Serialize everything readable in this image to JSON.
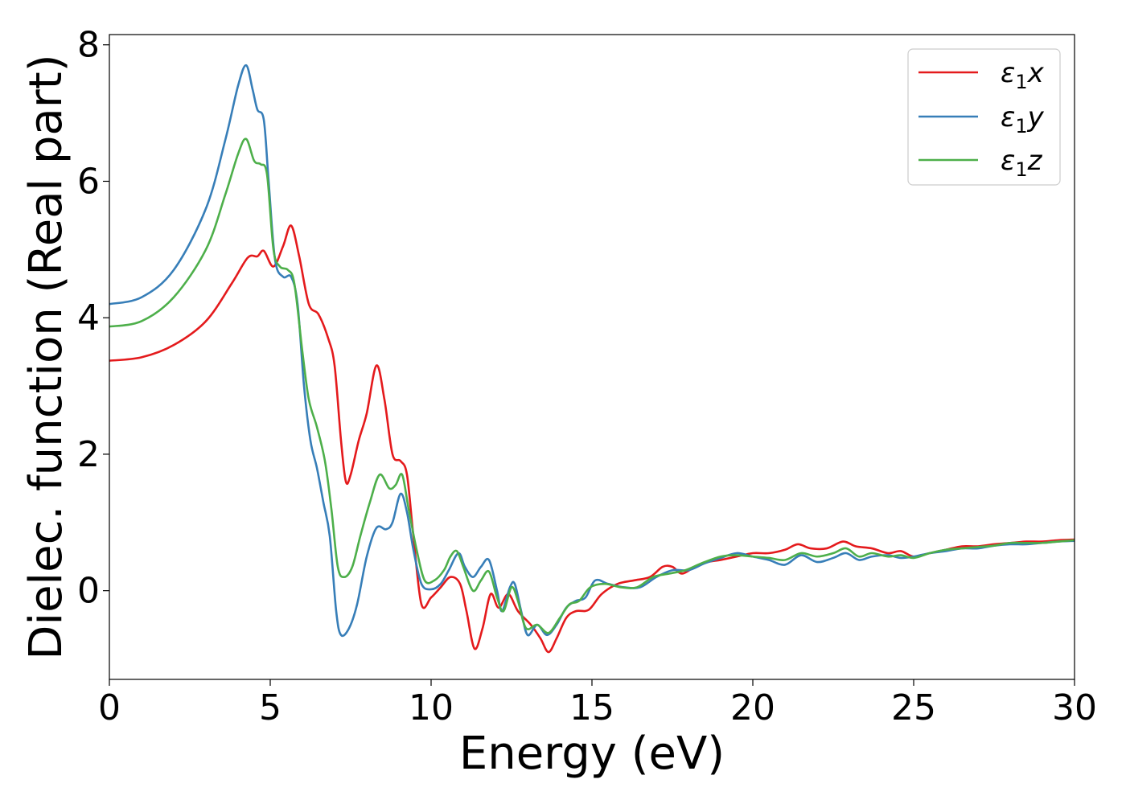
{
  "chart_data": {
    "type": "line",
    "xlabel": "Energy (eV)",
    "ylabel": "Dielec. function (Real part)",
    "xlim": [
      0,
      30
    ],
    "ylim": [
      -1.3,
      8.15
    ],
    "xticks": [
      0,
      5,
      10,
      15,
      20,
      25,
      30
    ],
    "yticks": [
      0,
      2,
      4,
      6,
      8
    ],
    "grid": false,
    "legend_position": "top-right",
    "series": [
      {
        "name": "ε₁x",
        "label_main": "ε",
        "label_sub": "1",
        "label_tail": "x",
        "color": "#e41a1c",
        "points": [
          [
            0,
            3.37
          ],
          [
            1,
            3.42
          ],
          [
            2,
            3.6
          ],
          [
            3,
            3.95
          ],
          [
            3.8,
            4.5
          ],
          [
            4.3,
            4.88
          ],
          [
            4.6,
            4.9
          ],
          [
            4.8,
            4.98
          ],
          [
            5.1,
            4.75
          ],
          [
            5.4,
            5.05
          ],
          [
            5.65,
            5.35
          ],
          [
            5.9,
            4.9
          ],
          [
            6.2,
            4.2
          ],
          [
            6.5,
            4.05
          ],
          [
            6.8,
            3.7
          ],
          [
            7.0,
            3.3
          ],
          [
            7.2,
            2.2
          ],
          [
            7.35,
            1.6
          ],
          [
            7.5,
            1.7
          ],
          [
            7.75,
            2.2
          ],
          [
            8.0,
            2.6
          ],
          [
            8.3,
            3.3
          ],
          [
            8.55,
            2.8
          ],
          [
            8.8,
            2.0
          ],
          [
            9.05,
            1.9
          ],
          [
            9.25,
            1.7
          ],
          [
            9.45,
            0.8
          ],
          [
            9.7,
            -0.2
          ],
          [
            10.0,
            -0.1
          ],
          [
            10.3,
            0.05
          ],
          [
            10.6,
            0.2
          ],
          [
            10.9,
            0.1
          ],
          [
            11.1,
            -0.3
          ],
          [
            11.35,
            -0.85
          ],
          [
            11.6,
            -0.55
          ],
          [
            11.85,
            -0.05
          ],
          [
            12.1,
            -0.25
          ],
          [
            12.4,
            -0.05
          ],
          [
            12.7,
            -0.3
          ],
          [
            13.1,
            -0.5
          ],
          [
            13.4,
            -0.7
          ],
          [
            13.65,
            -0.9
          ],
          [
            13.9,
            -0.7
          ],
          [
            14.2,
            -0.4
          ],
          [
            14.5,
            -0.3
          ],
          [
            14.9,
            -0.28
          ],
          [
            15.3,
            -0.05
          ],
          [
            15.8,
            0.1
          ],
          [
            16.3,
            0.15
          ],
          [
            16.8,
            0.2
          ],
          [
            17.2,
            0.35
          ],
          [
            17.5,
            0.35
          ],
          [
            17.8,
            0.25
          ],
          [
            18.2,
            0.35
          ],
          [
            18.6,
            0.42
          ],
          [
            19.0,
            0.45
          ],
          [
            19.5,
            0.5
          ],
          [
            20.0,
            0.55
          ],
          [
            20.5,
            0.55
          ],
          [
            21.0,
            0.6
          ],
          [
            21.4,
            0.68
          ],
          [
            21.8,
            0.62
          ],
          [
            22.3,
            0.62
          ],
          [
            22.8,
            0.72
          ],
          [
            23.2,
            0.65
          ],
          [
            23.7,
            0.62
          ],
          [
            24.2,
            0.55
          ],
          [
            24.6,
            0.58
          ],
          [
            25.0,
            0.5
          ],
          [
            25.5,
            0.55
          ],
          [
            26.0,
            0.6
          ],
          [
            26.5,
            0.65
          ],
          [
            27.0,
            0.65
          ],
          [
            27.5,
            0.68
          ],
          [
            28.0,
            0.7
          ],
          [
            28.5,
            0.72
          ],
          [
            29.0,
            0.72
          ],
          [
            29.5,
            0.74
          ],
          [
            30,
            0.75
          ]
        ]
      },
      {
        "name": "ε₁y",
        "label_main": "ε",
        "label_sub": "1",
        "label_tail": "y",
        "color": "#377eb8",
        "points": [
          [
            0,
            4.2
          ],
          [
            1,
            4.3
          ],
          [
            2,
            4.7
          ],
          [
            3,
            5.6
          ],
          [
            3.6,
            6.6
          ],
          [
            4.0,
            7.4
          ],
          [
            4.25,
            7.7
          ],
          [
            4.45,
            7.35
          ],
          [
            4.6,
            7.05
          ],
          [
            4.8,
            6.9
          ],
          [
            4.95,
            6.0
          ],
          [
            5.15,
            4.85
          ],
          [
            5.4,
            4.6
          ],
          [
            5.65,
            4.6
          ],
          [
            5.85,
            4.2
          ],
          [
            6.05,
            3.0
          ],
          [
            6.25,
            2.2
          ],
          [
            6.45,
            1.8
          ],
          [
            6.65,
            1.3
          ],
          [
            6.85,
            0.8
          ],
          [
            7.05,
            -0.3
          ],
          [
            7.2,
            -0.65
          ],
          [
            7.45,
            -0.55
          ],
          [
            7.7,
            -0.2
          ],
          [
            8.0,
            0.5
          ],
          [
            8.3,
            0.92
          ],
          [
            8.6,
            0.9
          ],
          [
            8.8,
            1.0
          ],
          [
            9.05,
            1.42
          ],
          [
            9.25,
            1.15
          ],
          [
            9.45,
            0.6
          ],
          [
            9.7,
            0.1
          ],
          [
            10.0,
            0.02
          ],
          [
            10.3,
            0.1
          ],
          [
            10.55,
            0.3
          ],
          [
            10.85,
            0.55
          ],
          [
            11.05,
            0.35
          ],
          [
            11.3,
            0.2
          ],
          [
            11.55,
            0.35
          ],
          [
            11.8,
            0.45
          ],
          [
            12.05,
            0.0
          ],
          [
            12.2,
            -0.3
          ],
          [
            12.45,
            0.05
          ],
          [
            12.6,
            0.1
          ],
          [
            12.8,
            -0.3
          ],
          [
            13.0,
            -0.65
          ],
          [
            13.3,
            -0.5
          ],
          [
            13.6,
            -0.65
          ],
          [
            13.9,
            -0.5
          ],
          [
            14.2,
            -0.25
          ],
          [
            14.5,
            -0.15
          ],
          [
            14.8,
            -0.1
          ],
          [
            15.1,
            0.15
          ],
          [
            15.5,
            0.1
          ],
          [
            16.0,
            0.05
          ],
          [
            16.5,
            0.05
          ],
          [
            17.0,
            0.2
          ],
          [
            17.5,
            0.3
          ],
          [
            18.0,
            0.3
          ],
          [
            18.5,
            0.4
          ],
          [
            19.0,
            0.48
          ],
          [
            19.5,
            0.55
          ],
          [
            20.0,
            0.5
          ],
          [
            20.5,
            0.45
          ],
          [
            21.0,
            0.38
          ],
          [
            21.5,
            0.52
          ],
          [
            22.0,
            0.42
          ],
          [
            22.5,
            0.48
          ],
          [
            22.9,
            0.55
          ],
          [
            23.3,
            0.45
          ],
          [
            23.7,
            0.5
          ],
          [
            24.2,
            0.52
          ],
          [
            24.6,
            0.48
          ],
          [
            25.0,
            0.5
          ],
          [
            25.5,
            0.55
          ],
          [
            26.0,
            0.58
          ],
          [
            26.5,
            0.62
          ],
          [
            27.0,
            0.62
          ],
          [
            27.5,
            0.66
          ],
          [
            28.0,
            0.68
          ],
          [
            28.5,
            0.68
          ],
          [
            29.0,
            0.7
          ],
          [
            29.5,
            0.72
          ],
          [
            30,
            0.73
          ]
        ]
      },
      {
        "name": "ε₁z",
        "label_main": "ε",
        "label_sub": "1",
        "label_tail": "z",
        "color": "#4daf4a",
        "points": [
          [
            0,
            3.87
          ],
          [
            1,
            3.95
          ],
          [
            2,
            4.3
          ],
          [
            3,
            5.0
          ],
          [
            3.6,
            5.8
          ],
          [
            4.0,
            6.4
          ],
          [
            4.25,
            6.62
          ],
          [
            4.5,
            6.3
          ],
          [
            4.7,
            6.25
          ],
          [
            4.9,
            6.1
          ],
          [
            5.1,
            5.0
          ],
          [
            5.3,
            4.75
          ],
          [
            5.55,
            4.7
          ],
          [
            5.75,
            4.5
          ],
          [
            6.0,
            3.5
          ],
          [
            6.2,
            2.8
          ],
          [
            6.45,
            2.4
          ],
          [
            6.7,
            1.9
          ],
          [
            6.9,
            1.2
          ],
          [
            7.1,
            0.35
          ],
          [
            7.3,
            0.2
          ],
          [
            7.55,
            0.35
          ],
          [
            7.8,
            0.8
          ],
          [
            8.1,
            1.3
          ],
          [
            8.4,
            1.7
          ],
          [
            8.7,
            1.5
          ],
          [
            8.9,
            1.55
          ],
          [
            9.1,
            1.7
          ],
          [
            9.3,
            1.2
          ],
          [
            9.55,
            0.6
          ],
          [
            9.8,
            0.15
          ],
          [
            10.1,
            0.15
          ],
          [
            10.4,
            0.3
          ],
          [
            10.6,
            0.5
          ],
          [
            10.8,
            0.58
          ],
          [
            11.0,
            0.35
          ],
          [
            11.3,
            0.0
          ],
          [
            11.55,
            0.15
          ],
          [
            11.8,
            0.28
          ],
          [
            12.05,
            -0.1
          ],
          [
            12.25,
            -0.3
          ],
          [
            12.5,
            0.05
          ],
          [
            12.7,
            -0.15
          ],
          [
            12.95,
            -0.55
          ],
          [
            13.3,
            -0.5
          ],
          [
            13.65,
            -0.62
          ],
          [
            14.0,
            -0.4
          ],
          [
            14.3,
            -0.2
          ],
          [
            14.6,
            -0.15
          ],
          [
            14.95,
            0.05
          ],
          [
            15.4,
            0.1
          ],
          [
            15.9,
            0.05
          ],
          [
            16.4,
            0.05
          ],
          [
            16.9,
            0.2
          ],
          [
            17.4,
            0.25
          ],
          [
            17.9,
            0.3
          ],
          [
            18.4,
            0.4
          ],
          [
            19.0,
            0.5
          ],
          [
            19.5,
            0.52
          ],
          [
            20.0,
            0.5
          ],
          [
            20.5,
            0.48
          ],
          [
            21.0,
            0.45
          ],
          [
            21.5,
            0.55
          ],
          [
            22.0,
            0.5
          ],
          [
            22.5,
            0.55
          ],
          [
            22.9,
            0.62
          ],
          [
            23.3,
            0.5
          ],
          [
            23.7,
            0.55
          ],
          [
            24.2,
            0.5
          ],
          [
            24.6,
            0.52
          ],
          [
            25.0,
            0.48
          ],
          [
            25.5,
            0.55
          ],
          [
            26.0,
            0.6
          ],
          [
            26.5,
            0.62
          ],
          [
            27.0,
            0.64
          ],
          [
            27.5,
            0.66
          ],
          [
            28.0,
            0.7
          ],
          [
            28.5,
            0.7
          ],
          [
            29.0,
            0.7
          ],
          [
            29.5,
            0.72
          ],
          [
            30,
            0.74
          ]
        ]
      }
    ]
  }
}
